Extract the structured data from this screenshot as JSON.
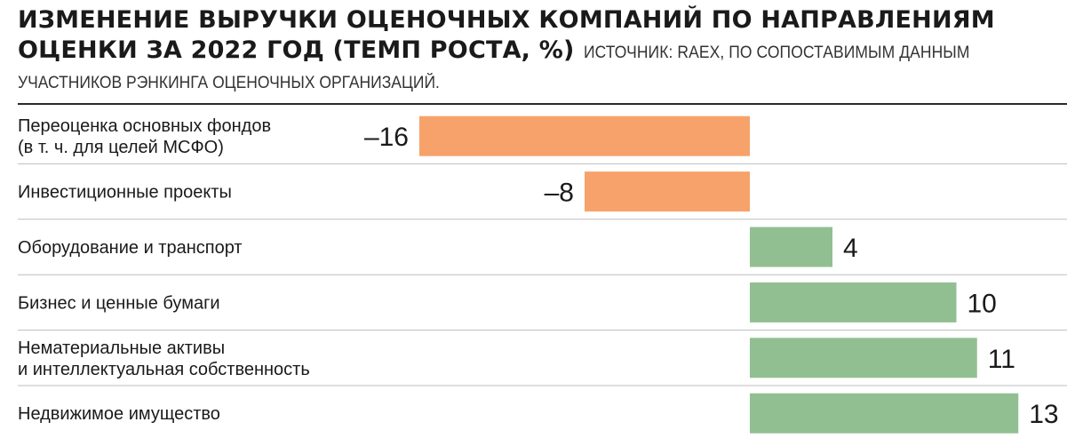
{
  "header": {
    "title_line1": "ИЗМЕНЕНИЕ ВЫРУЧКИ ОЦЕНОЧНЫХ КОМПАНИЙ ПО НАПРАВЛЕНИЯМ",
    "title_line2": "ОЦЕНКИ ЗА 2022 ГОД (ТЕМП РОСТА, %)",
    "source_line1": "ИСТОЧНИК: RAEX, ПО СОПОСТАВИМЫМ ДАННЫМ",
    "source_line2": "УЧАСТНИКОВ РЭНКИНГА ОЦЕНОЧНЫХ ОРГАНИЗАЦИЙ."
  },
  "colors": {
    "negative": "#f7a26b",
    "positive": "#91bf91",
    "divider": "#bdbdbd",
    "rule": "#2a2a2a"
  },
  "chart_data": {
    "type": "bar",
    "orientation": "horizontal",
    "title": "ИЗМЕНЕНИЕ ВЫРУЧКИ ОЦЕНОЧНЫХ КОМПАНИЙ ПО НАПРАВЛЕНИЯМ ОЦЕНКИ ЗА 2022 ГОД (ТЕМП РОСТА, %)",
    "xlim": [
      -16,
      13
    ],
    "grid": false,
    "legend": "none",
    "categories": [
      [
        "Переоценка основных фондов",
        "(в т. ч. для целей МСФО)"
      ],
      [
        "Инвестиционные проекты"
      ],
      [
        "Оборудование и транспорт"
      ],
      [
        "Бизнес и ценные бумаги"
      ],
      [
        "Нематериальные активы",
        "и интеллектуальная собственность"
      ],
      [
        "Недвижимое имущество"
      ]
    ],
    "values": [
      -16,
      -8,
      4,
      10,
      11,
      13
    ],
    "value_labels": [
      "–16",
      "–8",
      "4",
      "10",
      "11",
      "13"
    ]
  }
}
